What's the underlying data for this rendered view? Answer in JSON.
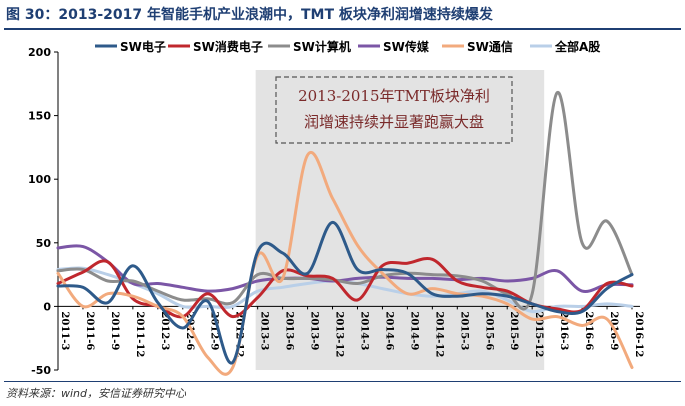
{
  "figure": {
    "title": "图 30：2013-2017 年智能手机产业浪潮中，TMT 板块净利润增速持续爆发",
    "source": "资料来源：wind，安信证券研究中心"
  },
  "chart_data": {
    "type": "line",
    "x": [
      "2011-3",
      "2011-6",
      "2011-9",
      "2011-12",
      "2012-3",
      "2012-6",
      "2012-9",
      "2012-12",
      "2013-3",
      "2013-6",
      "2013-9",
      "2013-12",
      "2014-3",
      "2014-6",
      "2014-9",
      "2014-12",
      "2015-3",
      "2015-6",
      "2015-9",
      "2015-12",
      "2016-3",
      "2016-6",
      "2016-9",
      "2016-12"
    ],
    "ylim": [
      -50,
      200
    ],
    "yticks": [
      -50,
      0,
      50,
      100,
      150,
      200
    ],
    "grid": false,
    "legend_position": "top",
    "shaded_region": [
      "2013-3",
      "2015-12"
    ],
    "annotation": [
      "2013-2015年TMT板块净利",
      "润增速持续并显著跑赢大盘"
    ],
    "series": [
      {
        "name": "SW电子",
        "color": "#2e5a8a",
        "values": [
          16,
          15,
          3,
          32,
          3,
          -17,
          4,
          -44,
          43,
          42,
          26,
          66,
          29,
          29,
          26,
          10,
          8,
          10,
          8,
          2,
          -4,
          -4,
          14,
          25
        ]
      },
      {
        "name": "SW消费电子",
        "color": "#c0272d",
        "values": [
          18,
          27,
          35,
          6,
          0,
          -8,
          10,
          -8,
          7,
          28,
          24,
          22,
          5,
          32,
          34,
          37,
          20,
          15,
          12,
          2,
          -2,
          -3,
          18,
          16
        ]
      },
      {
        "name": "SW计算机",
        "color": "#8c8c8c",
        "values": [
          28,
          29,
          20,
          20,
          12,
          5,
          6,
          3,
          25,
          22,
          22,
          21,
          18,
          24,
          26,
          25,
          24,
          20,
          10,
          10,
          168,
          50,
          67,
          25
        ]
      },
      {
        "name": "SW传媒",
        "color": "#7b56a6",
        "values": [
          46,
          47,
          35,
          18,
          18,
          15,
          12,
          14,
          20,
          22,
          22,
          20,
          22,
          23,
          22,
          22,
          21,
          22,
          20,
          22,
          28,
          12,
          17,
          17
        ]
      },
      {
        "name": "SW通信",
        "color": "#f2aa7d",
        "values": [
          26,
          0,
          10,
          8,
          0,
          -8,
          -40,
          -48,
          40,
          22,
          119,
          85,
          48,
          26,
          10,
          14,
          10,
          8,
          2,
          -10,
          -8,
          -15,
          -10,
          -48
        ]
      },
      {
        "name": "全部A股",
        "color": "#b9cfe8",
        "values": [
          29,
          30,
          25,
          18,
          10,
          0,
          0,
          0,
          12,
          15,
          18,
          20,
          18,
          14,
          10,
          8,
          10,
          12,
          5,
          -4,
          0,
          0,
          2,
          0
        ]
      }
    ]
  }
}
